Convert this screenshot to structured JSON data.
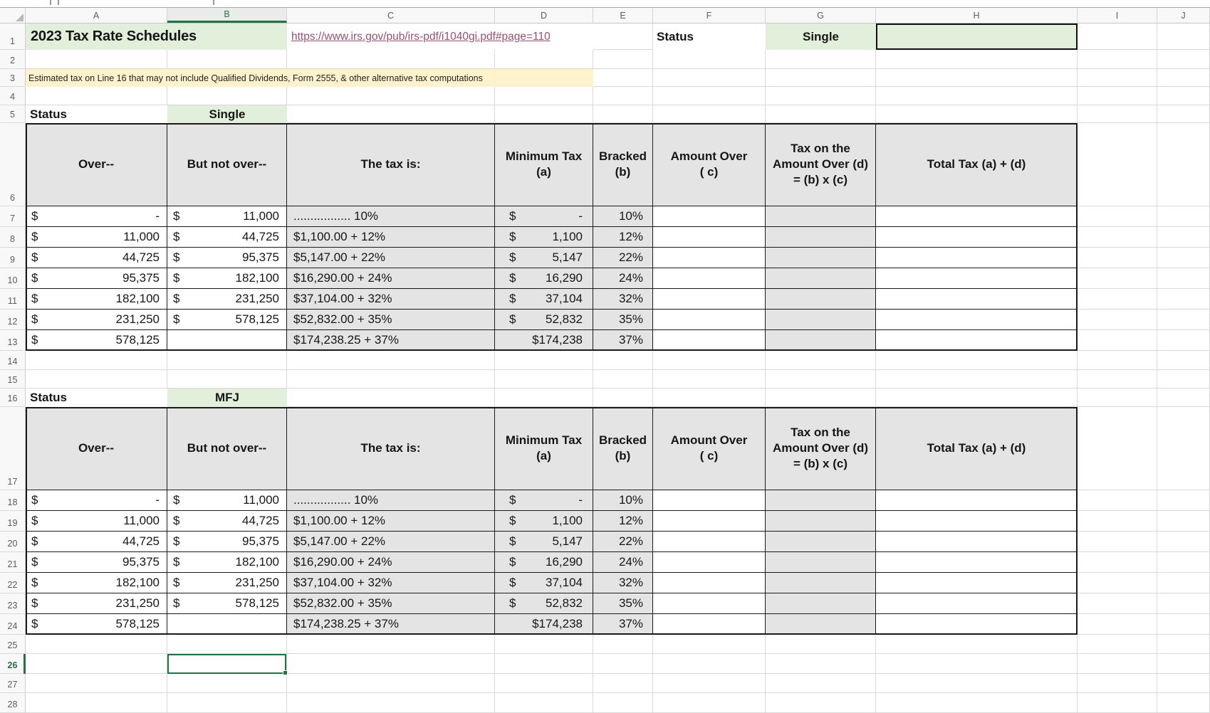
{
  "sheet": {
    "title": "2023 Tax Rate Schedules",
    "link": "https://www.irs.gov/pub/irs-pdf/i1040gi.pdf#page=110",
    "status_label": "Status",
    "status_value": "Single",
    "note": "Estimated tax on Line 16 that may not include Qualified Dividends, Form 2555, & other alternative tax computations"
  },
  "tables": [
    {
      "status_label": "Status",
      "status_value": "Single"
    },
    {
      "status_label": "Status",
      "status_value": "MFJ"
    }
  ],
  "table_headers": {
    "over": "Over--",
    "but_not_over": "But not over--",
    "tax_is": "The tax is:",
    "min_tax": "Minimum Tax (a)",
    "bracket": "Bracked (b)",
    "amount_over": "Amount Over ( c)",
    "tax_on_amount": "Tax on the Amount Over (d) = (b) x (c)",
    "total_tax": "Total Tax (a) + (d)"
  },
  "tax_rows": [
    {
      "a_sym": "$",
      "a_amt": "-",
      "b_sym": "$",
      "b_amt": "11,000",
      "c": "................. 10%",
      "d_sym": "$",
      "d_amt": "-",
      "e": "10%"
    },
    {
      "a_sym": "$",
      "a_amt": "11,000",
      "b_sym": "$",
      "b_amt": "44,725",
      "c": "$1,100.00 + 12%",
      "d_sym": "$",
      "d_amt": "1,100",
      "e": "12%"
    },
    {
      "a_sym": "$",
      "a_amt": "44,725",
      "b_sym": "$",
      "b_amt": "95,375",
      "c": "$5,147.00 + 22%",
      "d_sym": "$",
      "d_amt": "5,147",
      "e": "22%"
    },
    {
      "a_sym": "$",
      "a_amt": "95,375",
      "b_sym": "$",
      "b_amt": "182,100",
      "c": "$16,290.00 + 24%",
      "d_sym": "$",
      "d_amt": "16,290",
      "e": "24%"
    },
    {
      "a_sym": "$",
      "a_amt": "182,100",
      "b_sym": "$",
      "b_amt": "231,250",
      "c": "$37,104.00 + 32%",
      "d_sym": "$",
      "d_amt": "37,104",
      "e": "32%"
    },
    {
      "a_sym": "$",
      "a_amt": "231,250",
      "b_sym": "$",
      "b_amt": "578,125",
      "c": "$52,832.00 + 35%",
      "d_sym": "$",
      "d_amt": "52,832",
      "e": "35%"
    },
    {
      "a_sym": "$",
      "a_amt": "578,125",
      "b_sym": "",
      "b_amt": "",
      "c": "$174,238.25 + 37%",
      "d_sym": "",
      "d_amt": "$174,238",
      "e": "37%"
    }
  ],
  "grid": {
    "columns": [
      "A",
      "B",
      "C",
      "D",
      "E",
      "F",
      "G",
      "H",
      "I",
      "J"
    ],
    "rows": [
      "1",
      "2",
      "3",
      "4",
      "5",
      "6",
      "7",
      "8",
      "9",
      "10",
      "11",
      "12",
      "13",
      "14",
      "15",
      "16",
      "17",
      "18",
      "19",
      "20",
      "21",
      "22",
      "23",
      "24",
      "25",
      "26",
      "27",
      "28"
    ]
  },
  "selection": {
    "column": "B",
    "row": "26"
  },
  "colors": {
    "accent_green": "#217346",
    "fill_green": "#E2EFDA",
    "fill_yellow": "#FFF2CC",
    "fill_gray": "#E4E4E4",
    "link_color": "#954F72",
    "gridline": "#D9D9D9",
    "table_border": "#1A1A1A"
  }
}
